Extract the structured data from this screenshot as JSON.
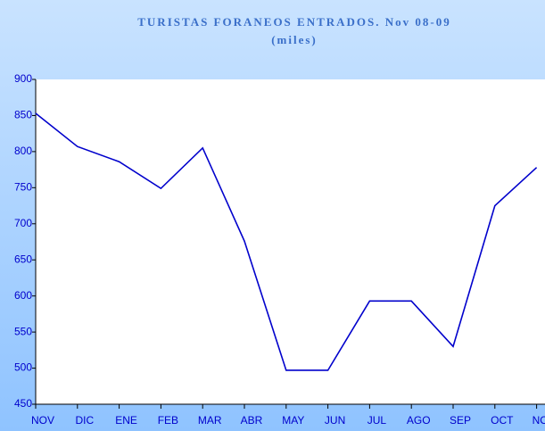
{
  "chart_data": {
    "type": "line",
    "title": "TURISTAS FORANEOS ENTRADOS. Nov 08-09",
    "subtitle": "(miles)",
    "categories": [
      "NOV",
      "DIC",
      "ENE",
      "FEB",
      "MAR",
      "ABR",
      "MAY",
      "JUN",
      "JUL",
      "AGO",
      "SEP",
      "OCT",
      "NOV"
    ],
    "series": [
      {
        "name": "Turistas",
        "color": "#0000cc",
        "values": [
          853,
          807,
          786,
          749,
          805,
          676,
          497,
          497,
          593,
          593,
          530,
          725,
          778
        ]
      }
    ],
    "ylim": [
      450,
      900
    ],
    "yticks": [
      450,
      500,
      550,
      600,
      650,
      700,
      750,
      800,
      850,
      900
    ],
    "grid": false
  }
}
